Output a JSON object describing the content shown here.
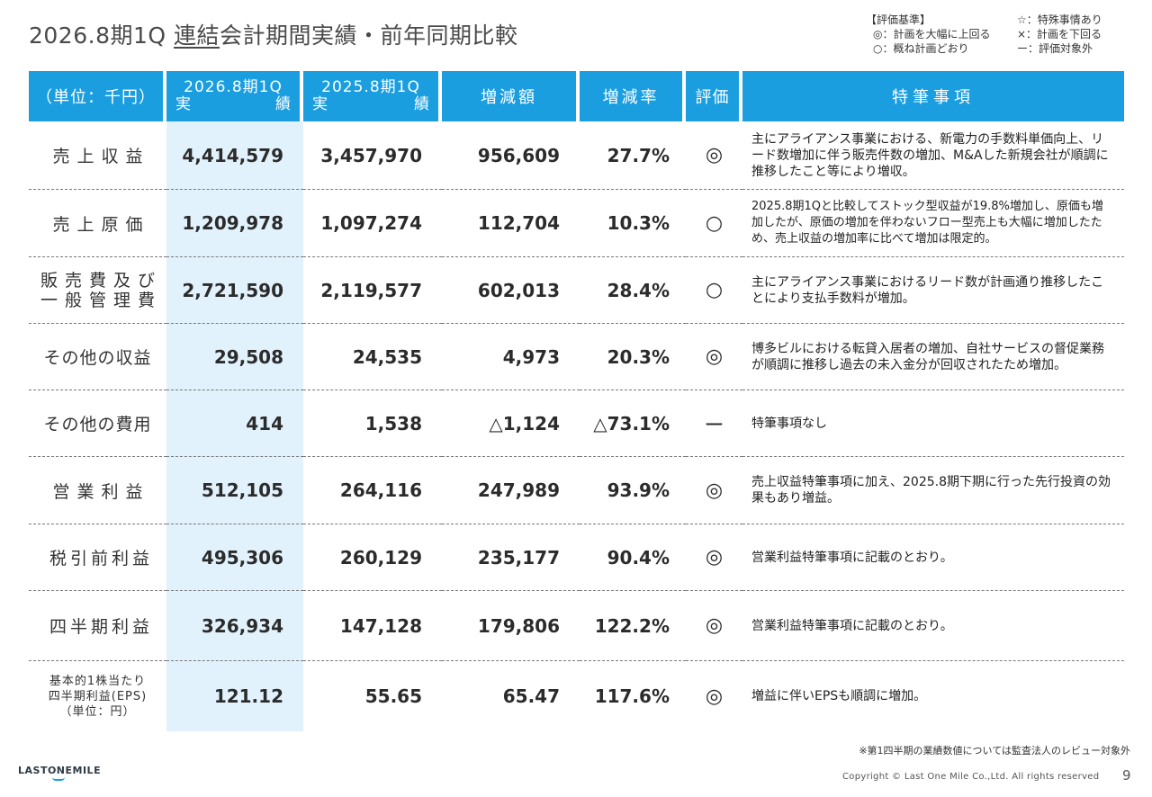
{
  "title": {
    "prefix": "2026.8期1Q",
    "underlined": "連結",
    "suffix": "会計期間実績・前年同期比較"
  },
  "legend": {
    "heading": "【評価基準】",
    "items_left": [
      "◎：計画を大幅に上回る",
      "○：概ね計画どおり"
    ],
    "items_right": [
      "☆：特殊事情あり",
      "×：計画を下回る",
      "ー：評価対象外"
    ]
  },
  "table": {
    "headers": {
      "unit": "（単位：千円）",
      "current_l1": "2026.8期1Q",
      "current_l2a": "実",
      "current_l2b": "績",
      "prior_l1": "2025.8期1Q",
      "prior_l2a": "実",
      "prior_l2b": "績",
      "change": "増減額",
      "rate": "増減率",
      "eval": "評価",
      "notes": "特筆事項"
    },
    "rows": [
      {
        "label": "売上収益",
        "current": "4,414,579",
        "prior": "3,457,970",
        "change": "956,609",
        "rate": "27.7%",
        "eval": "◎",
        "note": "主にアライアンス事業における、新電力の手数料単価向上、リード数増加に伴う販売件数の増加、M&Aした新規会社が順調に推移したこと等により増収。"
      },
      {
        "label": "売上原価",
        "current": "1,209,978",
        "prior": "1,097,274",
        "change": "112,704",
        "rate": "10.3%",
        "eval": "○",
        "note": "2025.8期1Qと比較してストック型収益が19.8%増加し、原価も増加したが、原価の増加を伴わないフロー型売上も大幅に増加したため、売上収益の増加率に比べて増加は限定的。"
      },
      {
        "label_l1": "販売費及び",
        "label_l2": "一般管理費",
        "current": "2,721,590",
        "prior": "2,119,577",
        "change": "602,013",
        "rate": "28.4%",
        "eval": "○",
        "note": "主にアライアンス事業におけるリード数が計画通り推移したことにより支払手数料が増加。"
      },
      {
        "label": "その他の収益",
        "current": "29,508",
        "prior": "24,535",
        "change": "4,973",
        "rate": "20.3%",
        "eval": "◎",
        "note": "博多ビルにおける転貸入居者の増加、自社サービスの督促業務が順調に推移し過去の未入金分が回収されたため増加。"
      },
      {
        "label": "その他の費用",
        "current": "414",
        "prior": "1,538",
        "change": "△1,124",
        "rate": "△73.1%",
        "eval": "ー",
        "note": "特筆事項なし"
      },
      {
        "label": "営業利益",
        "current": "512,105",
        "prior": "264,116",
        "change": "247,989",
        "rate": "93.9%",
        "eval": "◎",
        "note": "売上収益特筆事項に加え、2025.8期下期に行った先行投資の効果もあり増益。"
      },
      {
        "label": "税引前利益",
        "current": "495,306",
        "prior": "260,129",
        "change": "235,177",
        "rate": "90.4%",
        "eval": "◎",
        "note": "営業利益特筆事項に記載のとおり。"
      },
      {
        "label": "四半期利益",
        "current": "326,934",
        "prior": "147,128",
        "change": "179,806",
        "rate": "122.2%",
        "eval": "◎",
        "note": "営業利益特筆事項に記載のとおり。"
      },
      {
        "label_l1": "基本的1株当たり",
        "label_l2": "四半期利益(EPS)",
        "label_l3": "（単位：円）",
        "current": "121.12",
        "prior": "55.65",
        "change": "65.47",
        "rate": "117.6%",
        "eval": "◎",
        "note": "増益に伴いEPSも順調に増加。"
      }
    ]
  },
  "footnote": "※第1四半期の業績数値については監査法人のレビュー対象外",
  "logo": "LASTONEMILE",
  "copyright": "Copyright © Last One Mile Co.,Ltd. All rights reserved",
  "page_number": "9",
  "colors": {
    "header": "#1a9ee0",
    "current_column": "#e1f2fc",
    "logo_accent": "#1a9ee0"
  }
}
